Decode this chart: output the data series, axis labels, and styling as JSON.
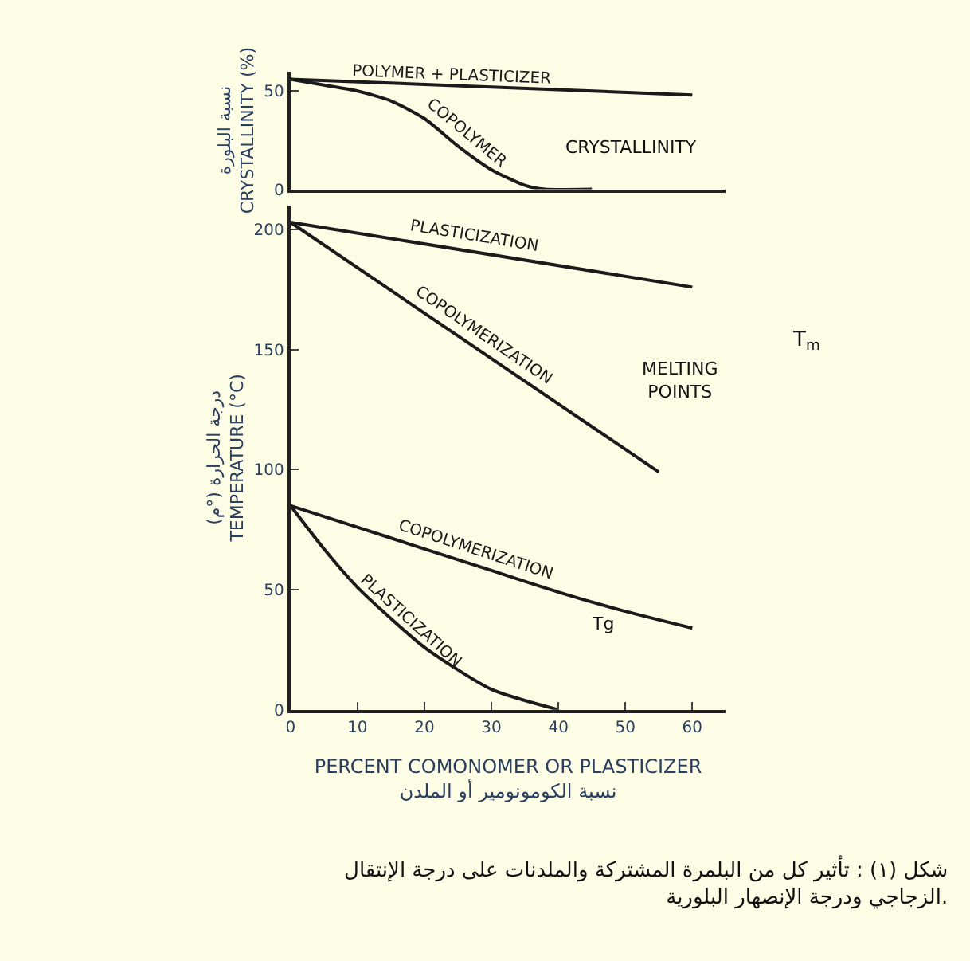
{
  "chart_data": [
    {
      "type": "line",
      "ylabel": "نسبة البلورة\nCRYSTALLINITY (%)",
      "xlim": [
        0,
        65
      ],
      "ylim": [
        0,
        60
      ],
      "xticks": [
        0,
        10,
        20,
        30,
        40,
        50,
        60
      ],
      "yticks": [
        0,
        50
      ],
      "tick_labels": "y",
      "grid": false,
      "annotations": [
        "CRYSTALLINITY"
      ],
      "series": [
        {
          "name": "POLYMER + PLASTICIZER",
          "color": "#1a1a1a",
          "x": [
            0,
            60
          ],
          "values": [
            56,
            48
          ]
        },
        {
          "name": "COPOLYMER",
          "color": "#1a1a1a",
          "x": [
            0,
            5,
            10,
            15,
            20,
            25,
            30,
            35,
            38,
            45
          ],
          "values": [
            56,
            53,
            50,
            45,
            36,
            22,
            10,
            2,
            0,
            0
          ]
        }
      ]
    },
    {
      "type": "line",
      "ylabel": "درجة الحرارة (°م)\nTEMPERATURE (°C)",
      "xlabel": "PERCENT COMONOMER OR PLASTICIZER\nنسبة الكومونومير أو الملدن",
      "xlim": [
        0,
        65
      ],
      "ylim": [
        0,
        210
      ],
      "xticks": [
        0,
        10,
        20,
        30,
        40,
        50,
        60
      ],
      "yticks": [
        0,
        50,
        100,
        150,
        200
      ],
      "grid": false,
      "annotations": [
        "MELTING\nPOINTS",
        "Tg",
        "T$_{m}$",
        "شكل (١) : تأثير كل من البلمرة المشتركة والملدنات على درجة الإنتقال\nالزجاجي ودرجة الإنصهار البلورية."
      ],
      "series": [
        {
          "name": "PLASTICIZATION",
          "color": "#1a1a1a",
          "x": [
            0,
            60
          ],
          "values": [
            203,
            176
          ]
        },
        {
          "name": "COPOLYMERIZATION",
          "color": "#1a1a1a",
          "x": [
            0,
            55
          ],
          "values": [
            203,
            99
          ]
        },
        {
          "name": "COPOLYMERIZATION",
          "color": "#1a1a1a",
          "x": [
            0,
            10,
            20,
            30,
            40,
            50,
            60
          ],
          "values": [
            85,
            76,
            67,
            58,
            49,
            41,
            34
          ]
        },
        {
          "name": "PLASTICIZATION",
          "color": "#1a1a1a",
          "x": [
            0,
            5,
            10,
            20,
            30,
            40
          ],
          "values": [
            85,
            67,
            51,
            26,
            8.5,
            0
          ]
        }
      ]
    }
  ]
}
